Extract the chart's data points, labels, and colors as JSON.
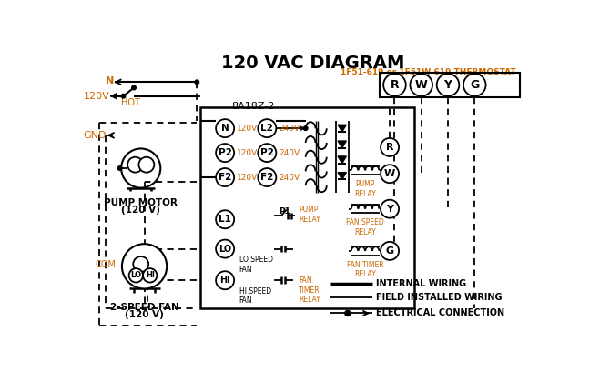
{
  "title": "120 VAC DIAGRAM",
  "title_color": "#000000",
  "title_fontsize": 14,
  "background_color": "#ffffff",
  "thermostat_label": "1F51-619 or 1F51W-619 THERMOSTAT",
  "thermostat_color": "#cc6600",
  "box8a_label": "8A18Z-2",
  "terminals": [
    "R",
    "W",
    "Y",
    "G"
  ],
  "pump_motor_label1": "PUMP MOTOR",
  "pump_motor_label2": "(120 V)",
  "fan_label1": "2-SPEED FAN",
  "fan_label2": "(120 V)",
  "com_label": "COM",
  "legend_internal": "INTERNAL WIRING",
  "legend_field": "FIELD INSTALLED WIRING",
  "legend_elec": "ELECTRICAL CONNECTION",
  "orange": "#cc6600"
}
